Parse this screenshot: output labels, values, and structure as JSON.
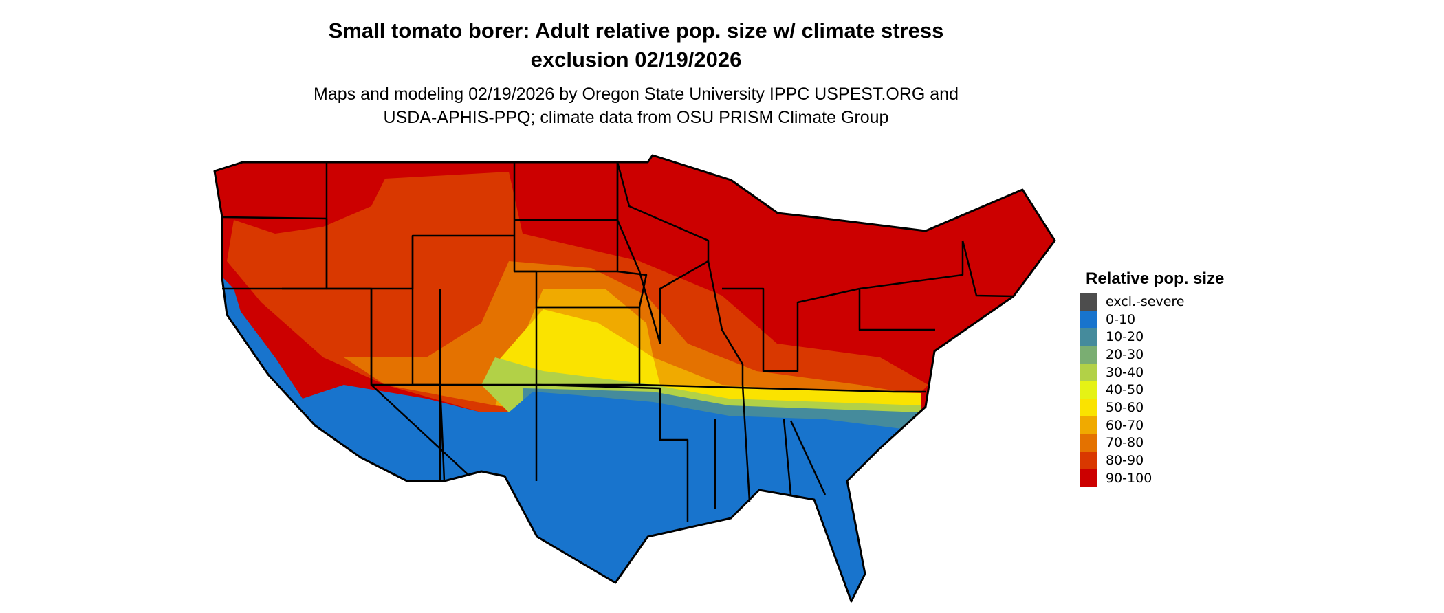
{
  "title": {
    "line1": "Small tomato borer: Adult relative pop. size w/ climate stress",
    "line2": "exclusion 02/19/2026"
  },
  "subtitle": {
    "line1": "Maps and modeling 02/19/2026 by Oregon State University IPPC USPEST.ORG and",
    "line2": "USDA-APHIS-PPQ; climate data from OSU PRISM Climate Group"
  },
  "map": {
    "region": "Conterminous United States",
    "base_color": "#cc0000",
    "border_color": "#000000"
  },
  "legend": {
    "title": "Relative pop. size",
    "items": [
      {
        "label": "excl.-severe",
        "color": "#4d4d4d"
      },
      {
        "label": "0-10",
        "color": "#1874cd"
      },
      {
        "label": "10-20",
        "color": "#458b9c"
      },
      {
        "label": "20-30",
        "color": "#7aae72"
      },
      {
        "label": "30-40",
        "color": "#b2d147"
      },
      {
        "label": "40-50",
        "color": "#e5f215"
      },
      {
        "label": "50-60",
        "color": "#fae300"
      },
      {
        "label": "60-70",
        "color": "#f0aa00"
      },
      {
        "label": "70-80",
        "color": "#e47200"
      },
      {
        "label": "80-90",
        "color": "#d93800"
      },
      {
        "label": "90-100",
        "color": "#cc0000"
      }
    ]
  }
}
